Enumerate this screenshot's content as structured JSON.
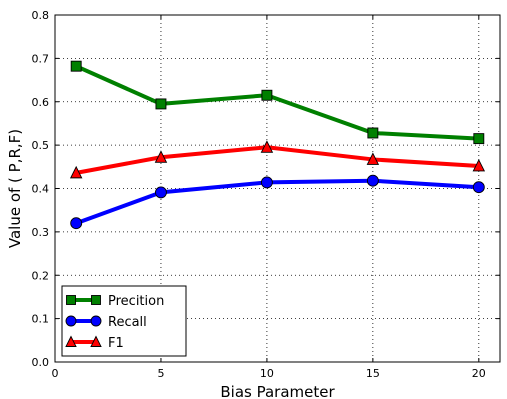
{
  "chart_data": {
    "type": "line",
    "x": [
      1,
      5,
      10,
      15,
      20
    ],
    "series": [
      {
        "name": "Precition",
        "values": [
          0.682,
          0.595,
          0.615,
          0.528,
          0.515
        ],
        "color": "#008000",
        "marker": "square"
      },
      {
        "name": "Recall",
        "values": [
          0.32,
          0.391,
          0.414,
          0.418,
          0.403
        ],
        "color": "#0000ff",
        "marker": "circle"
      },
      {
        "name": "F1",
        "values": [
          0.436,
          0.472,
          0.495,
          0.467,
          0.452
        ],
        "color": "#ff0000",
        "marker": "triangle"
      }
    ],
    "xlabel": "Bias Parameter",
    "ylabel": "Value of ( P,R,F)",
    "xlim": [
      0,
      21
    ],
    "ylim": [
      0,
      0.8
    ],
    "xticks": [
      "0",
      "5",
      "10",
      "15",
      "20"
    ],
    "xtick_values": [
      0,
      5,
      10,
      15,
      20
    ],
    "yticks": [
      "0.0",
      "0.1",
      "0.2",
      "0.3",
      "0.4",
      "0.5",
      "0.6",
      "0.7",
      "0.8"
    ],
    "ytick_values": [
      0,
      0.1,
      0.2,
      0.3,
      0.4,
      0.5,
      0.6,
      0.7,
      0.8
    ],
    "grid": true,
    "legend_position": "lower-left"
  }
}
